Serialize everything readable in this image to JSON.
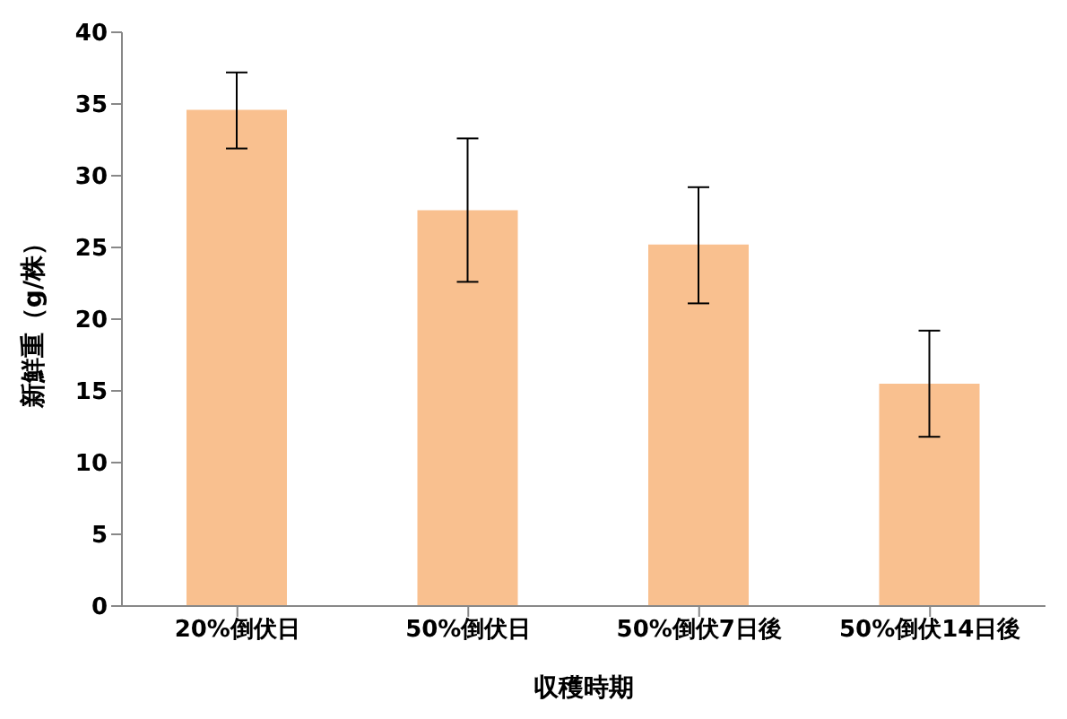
{
  "chart_data": {
    "type": "bar",
    "xlabel": "収穫時期",
    "ylabel": "新鮮重（g/株）",
    "categories": [
      "20%倒伏日",
      "50%倒伏日",
      "50%倒伏7日後",
      "50%倒伏14日後"
    ],
    "values": [
      34.6,
      27.6,
      25.2,
      15.5
    ],
    "errors": [
      [
        31.9,
        37.2
      ],
      [
        22.6,
        32.6
      ],
      [
        21.1,
        29.2
      ],
      [
        11.8,
        19.2
      ]
    ],
    "color": "#f9c08f",
    "ylim": [
      0,
      40
    ],
    "yticks": [
      0,
      5,
      10,
      15,
      20,
      25,
      30,
      35,
      40
    ],
    "grid": false,
    "legend": false
  }
}
